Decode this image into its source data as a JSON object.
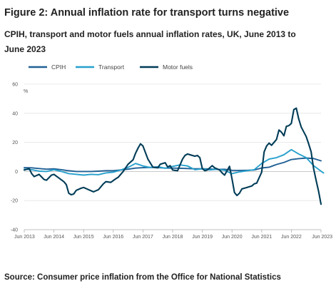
{
  "figure": {
    "title": "Figure 2: Annual inflation rate for transport turns negative",
    "subtitle": "CPIH, transport and motor fuels annual inflation rates, UK, June 2013 to June 2023",
    "source": "Source: Consumer price inflation from the Office for National Statistics"
  },
  "chart_data": {
    "type": "line",
    "title": "Figure 2: Annual inflation rate for transport turns negative",
    "subtitle": "CPIH, transport and motor fuels annual inflation rates, UK, June 2013 to June 2023",
    "xlabel": "",
    "ylabel": "%",
    "ylim": [
      -40,
      60
    ],
    "yticks": [
      60,
      40,
      20,
      0,
      -20,
      -40
    ],
    "xlim": [
      "2013-06",
      "2023-06"
    ],
    "xticks": [
      "Jun 2013",
      "Jun 2014",
      "Jun 2015",
      "Jun 2016",
      "Jun 2017",
      "Jun 2018",
      "Jun 2019",
      "Jun 2020",
      "Jun 2021",
      "Jun 2022",
      "Jun 2023"
    ],
    "grid": "horizontal",
    "legend": "top",
    "series": [
      {
        "name": "CPIH",
        "color": "#206095",
        "points": [
          [
            "2013-06",
            2.6
          ],
          [
            "2013-09",
            2.5
          ],
          [
            "2013-12",
            2.0
          ],
          [
            "2014-03",
            1.6
          ],
          [
            "2014-06",
            1.8
          ],
          [
            "2014-09",
            1.2
          ],
          [
            "2014-12",
            0.5
          ],
          [
            "2015-03",
            0.0
          ],
          [
            "2015-06",
            0.0
          ],
          [
            "2015-09",
            0.0
          ],
          [
            "2015-12",
            0.2
          ],
          [
            "2016-03",
            0.5
          ],
          [
            "2016-06",
            0.5
          ],
          [
            "2016-09",
            1.0
          ],
          [
            "2016-12",
            1.6
          ],
          [
            "2017-03",
            2.3
          ],
          [
            "2017-06",
            2.6
          ],
          [
            "2017-09",
            2.8
          ],
          [
            "2017-12",
            2.7
          ],
          [
            "2018-03",
            2.3
          ],
          [
            "2018-06",
            2.3
          ],
          [
            "2018-09",
            2.2
          ],
          [
            "2018-12",
            2.0
          ],
          [
            "2019-03",
            1.8
          ],
          [
            "2019-06",
            1.9
          ],
          [
            "2019-09",
            1.7
          ],
          [
            "2019-12",
            1.4
          ],
          [
            "2020-03",
            1.5
          ],
          [
            "2020-06",
            0.8
          ],
          [
            "2020-09",
            0.7
          ],
          [
            "2020-12",
            0.8
          ],
          [
            "2021-03",
            1.0
          ],
          [
            "2021-06",
            2.4
          ],
          [
            "2021-09",
            2.9
          ],
          [
            "2021-12",
            4.8
          ],
          [
            "2022-03",
            6.2
          ],
          [
            "2022-06",
            8.2
          ],
          [
            "2022-09",
            8.8
          ],
          [
            "2022-12",
            9.2
          ],
          [
            "2023-03",
            8.9
          ],
          [
            "2023-06",
            7.3
          ]
        ]
      },
      {
        "name": "Transport",
        "color": "#27a0cc",
        "points": [
          [
            "2013-06",
            1.5
          ],
          [
            "2013-09",
            1.2
          ],
          [
            "2013-12",
            0.2
          ],
          [
            "2014-03",
            0.0
          ],
          [
            "2014-06",
            1.2
          ],
          [
            "2014-09",
            0.0
          ],
          [
            "2014-12",
            -1.5
          ],
          [
            "2015-03",
            -2.0
          ],
          [
            "2015-06",
            -2.5
          ],
          [
            "2015-09",
            -2.0
          ],
          [
            "2015-12",
            -2.2
          ],
          [
            "2016-03",
            -1.0
          ],
          [
            "2016-06",
            -0.5
          ],
          [
            "2016-09",
            1.0
          ],
          [
            "2016-12",
            2.8
          ],
          [
            "2017-03",
            5.5
          ],
          [
            "2017-06",
            3.8
          ],
          [
            "2017-09",
            2.7
          ],
          [
            "2017-12",
            3.3
          ],
          [
            "2018-03",
            2.2
          ],
          [
            "2018-06",
            3.5
          ],
          [
            "2018-09",
            4.5
          ],
          [
            "2018-12",
            3.8
          ],
          [
            "2019-03",
            1.2
          ],
          [
            "2019-06",
            1.8
          ],
          [
            "2019-09",
            1.0
          ],
          [
            "2019-12",
            1.5
          ],
          [
            "2020-03",
            0.8
          ],
          [
            "2020-06",
            -1.5
          ],
          [
            "2020-09",
            -0.3
          ],
          [
            "2020-12",
            0.5
          ],
          [
            "2021-03",
            1.2
          ],
          [
            "2021-06",
            5.5
          ],
          [
            "2021-09",
            8.5
          ],
          [
            "2021-12",
            9.5
          ],
          [
            "2022-03",
            11.5
          ],
          [
            "2022-06",
            15.0
          ],
          [
            "2022-09",
            12.0
          ],
          [
            "2022-12",
            9.5
          ],
          [
            "2023-03",
            4.0
          ],
          [
            "2023-06",
            0.2
          ],
          [
            "2023-07",
            -1.0
          ]
        ]
      },
      {
        "name": "Motor fuels",
        "color": "#003c57",
        "points": [
          [
            "2013-06",
            1.0
          ],
          [
            "2013-08",
            2.0
          ],
          [
            "2013-09",
            -1.5
          ],
          [
            "2013-10",
            -3.5
          ],
          [
            "2013-12",
            -2.0
          ],
          [
            "2014-02",
            -5.5
          ],
          [
            "2014-03",
            -6.0
          ],
          [
            "2014-05",
            -2.5
          ],
          [
            "2014-06",
            -2.0
          ],
          [
            "2014-08",
            -4.5
          ],
          [
            "2014-10",
            -7.0
          ],
          [
            "2014-11",
            -9.0
          ],
          [
            "2014-12",
            -15.0
          ],
          [
            "2015-01",
            -16.0
          ],
          [
            "2015-02",
            -15.5
          ],
          [
            "2015-03",
            -13.0
          ],
          [
            "2015-05",
            -11.5
          ],
          [
            "2015-06",
            -11.0
          ],
          [
            "2015-08",
            -12.5
          ],
          [
            "2015-10",
            -14.0
          ],
          [
            "2015-12",
            -12.5
          ],
          [
            "2016-02",
            -8.5
          ],
          [
            "2016-03",
            -7.0
          ],
          [
            "2016-05",
            -7.5
          ],
          [
            "2016-07",
            -5.0
          ],
          [
            "2016-08",
            -4.0
          ],
          [
            "2016-10",
            0.0
          ],
          [
            "2016-12",
            5.0
          ],
          [
            "2017-02",
            8.0
          ],
          [
            "2017-03",
            12.5
          ],
          [
            "2017-04",
            16.0
          ],
          [
            "2017-05",
            19.0
          ],
          [
            "2017-06",
            17.5
          ],
          [
            "2017-08",
            8.5
          ],
          [
            "2017-10",
            3.0
          ],
          [
            "2017-12",
            2.5
          ],
          [
            "2018-01",
            5.0
          ],
          [
            "2018-03",
            6.0
          ],
          [
            "2018-04",
            3.0
          ],
          [
            "2018-05",
            4.0
          ],
          [
            "2018-06",
            1.0
          ],
          [
            "2018-08",
            0.5
          ],
          [
            "2018-10",
            8.5
          ],
          [
            "2018-11",
            11.0
          ],
          [
            "2018-12",
            12.0
          ],
          [
            "2019-01",
            11.5
          ],
          [
            "2019-03",
            10.5
          ],
          [
            "2019-04",
            11.0
          ],
          [
            "2019-05",
            9.5
          ],
          [
            "2019-06",
            2.0
          ],
          [
            "2019-07",
            0.5
          ],
          [
            "2019-08",
            1.0
          ],
          [
            "2019-10",
            4.0
          ],
          [
            "2019-11",
            2.5
          ],
          [
            "2020-01",
            1.0
          ],
          [
            "2020-02",
            -1.0
          ],
          [
            "2020-03",
            -2.5
          ],
          [
            "2020-05",
            3.5
          ],
          [
            "2020-06",
            -5.0
          ],
          [
            "2020-07",
            -14.5
          ],
          [
            "2020-08",
            -16.5
          ],
          [
            "2020-09",
            -15.0
          ],
          [
            "2020-10",
            -12.0
          ],
          [
            "2020-12",
            -11.0
          ],
          [
            "2021-02",
            -10.0
          ],
          [
            "2021-03",
            -8.5
          ],
          [
            "2021-04",
            -8.0
          ],
          [
            "2021-06",
            -0.5
          ],
          [
            "2021-07",
            13.5
          ],
          [
            "2021-08",
            17.5
          ],
          [
            "2021-09",
            19.5
          ],
          [
            "2021-10",
            18.0
          ],
          [
            "2021-12",
            22.0
          ],
          [
            "2022-01",
            28.5
          ],
          [
            "2022-02",
            27.0
          ],
          [
            "2022-03",
            24.5
          ],
          [
            "2022-04",
            31.0
          ],
          [
            "2022-05",
            31.5
          ],
          [
            "2022-06",
            33.0
          ],
          [
            "2022-07",
            42.5
          ],
          [
            "2022-08",
            43.5
          ],
          [
            "2022-09",
            36.0
          ],
          [
            "2022-10",
            30.5
          ],
          [
            "2022-12",
            24.0
          ],
          [
            "2023-01",
            19.0
          ],
          [
            "2023-02",
            13.5
          ],
          [
            "2023-03",
            2.0
          ],
          [
            "2023-04",
            -6.0
          ],
          [
            "2023-05",
            -13.5
          ],
          [
            "2023-06",
            -22.5
          ]
        ]
      }
    ]
  }
}
